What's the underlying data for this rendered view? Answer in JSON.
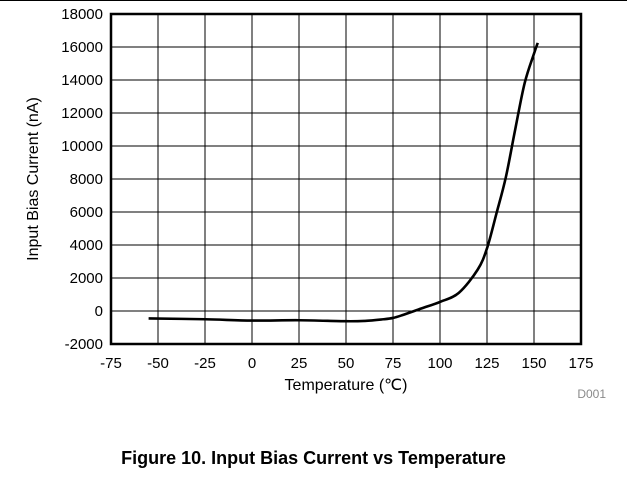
{
  "chart_data": {
    "type": "line",
    "title": "",
    "xlabel": "Temperature (℃)",
    "ylabel": "Input Bias Current (nA)",
    "xlim": [
      -75,
      175
    ],
    "ylim": [
      -2000,
      18000
    ],
    "xticks": [
      -75,
      -50,
      -25,
      0,
      25,
      50,
      75,
      100,
      125,
      150,
      175
    ],
    "yticks": [
      -2000,
      0,
      2000,
      4000,
      6000,
      8000,
      10000,
      12000,
      14000,
      16000,
      18000
    ],
    "grid": true,
    "series": [
      {
        "name": "Input Bias Current",
        "x": [
          -55,
          -25,
          0,
          25,
          50,
          60,
          70,
          75,
          80,
          90,
          100,
          110,
          120,
          125,
          130,
          135,
          140,
          145,
          150,
          152
        ],
        "y": [
          -450,
          -500,
          -580,
          -560,
          -620,
          -600,
          -500,
          -420,
          -250,
          150,
          550,
          1100,
          2500,
          3800,
          5900,
          8100,
          11000,
          13800,
          15600,
          16250
        ]
      }
    ],
    "annotation": "D001"
  },
  "caption": "Figure 10. Input Bias Current vs Temperature"
}
